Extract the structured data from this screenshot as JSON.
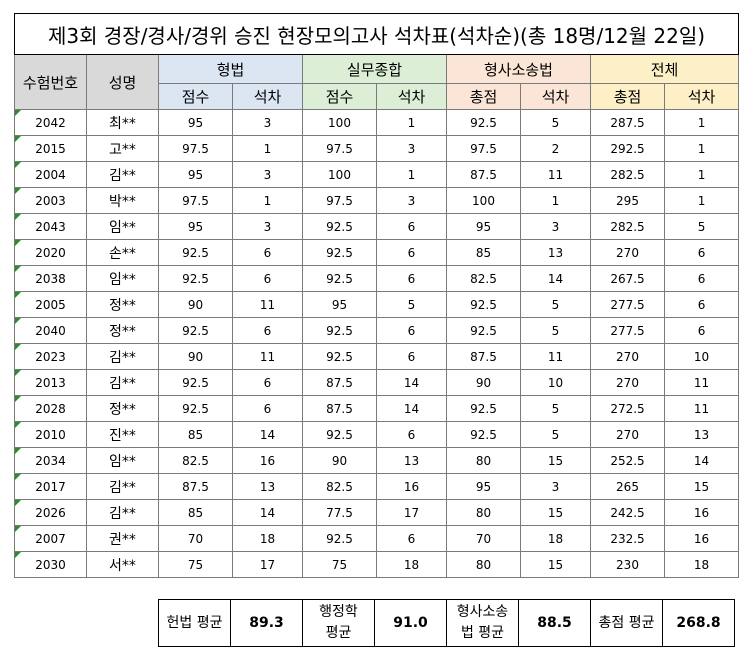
{
  "title": "제3회 경장/경사/경위 승진 현장모의고사 석차표(석차순)(총 18명/12월 22일)",
  "headers": {
    "exam_no": "수험번호",
    "name": "성명",
    "groups": [
      "형법",
      "실무종합",
      "형사소송법",
      "전체"
    ],
    "sub": [
      "점수",
      "석차",
      "점수",
      "석차",
      "총점",
      "석차",
      "총점",
      "석차"
    ]
  },
  "rows": [
    [
      "2042",
      "최**",
      "95",
      "3",
      "100",
      "1",
      "92.5",
      "5",
      "287.5",
      "1"
    ],
    [
      "2015",
      "고**",
      "97.5",
      "1",
      "97.5",
      "3",
      "97.5",
      "2",
      "292.5",
      "1"
    ],
    [
      "2004",
      "김**",
      "95",
      "3",
      "100",
      "1",
      "87.5",
      "11",
      "282.5",
      "1"
    ],
    [
      "2003",
      "박**",
      "97.5",
      "1",
      "97.5",
      "3",
      "100",
      "1",
      "295",
      "1"
    ],
    [
      "2043",
      "임**",
      "95",
      "3",
      "92.5",
      "6",
      "95",
      "3",
      "282.5",
      "5"
    ],
    [
      "2020",
      "손**",
      "92.5",
      "6",
      "92.5",
      "6",
      "85",
      "13",
      "270",
      "6"
    ],
    [
      "2038",
      "임**",
      "92.5",
      "6",
      "92.5",
      "6",
      "82.5",
      "14",
      "267.5",
      "6"
    ],
    [
      "2005",
      "정**",
      "90",
      "11",
      "95",
      "5",
      "92.5",
      "5",
      "277.5",
      "6"
    ],
    [
      "2040",
      "정**",
      "92.5",
      "6",
      "92.5",
      "6",
      "92.5",
      "5",
      "277.5",
      "6"
    ],
    [
      "2023",
      "김**",
      "90",
      "11",
      "92.5",
      "6",
      "87.5",
      "11",
      "270",
      "10"
    ],
    [
      "2013",
      "김**",
      "92.5",
      "6",
      "87.5",
      "14",
      "90",
      "10",
      "270",
      "11"
    ],
    [
      "2028",
      "정**",
      "92.5",
      "6",
      "87.5",
      "14",
      "92.5",
      "5",
      "272.5",
      "11"
    ],
    [
      "2010",
      "진**",
      "85",
      "14",
      "92.5",
      "6",
      "92.5",
      "5",
      "270",
      "13"
    ],
    [
      "2034",
      "임**",
      "82.5",
      "16",
      "90",
      "13",
      "80",
      "15",
      "252.5",
      "14"
    ],
    [
      "2017",
      "김**",
      "87.5",
      "13",
      "82.5",
      "16",
      "95",
      "3",
      "265",
      "15"
    ],
    [
      "2026",
      "김**",
      "85",
      "14",
      "77.5",
      "17",
      "80",
      "15",
      "242.5",
      "16"
    ],
    [
      "2007",
      "권**",
      "70",
      "18",
      "92.5",
      "6",
      "70",
      "18",
      "232.5",
      "16"
    ],
    [
      "2030",
      "서**",
      "75",
      "17",
      "75",
      "18",
      "80",
      "15",
      "230",
      "18"
    ]
  ],
  "summary": [
    {
      "label_lines": [
        "헌법 평균"
      ],
      "value": "89.3"
    },
    {
      "label_lines": [
        "행정학",
        "평균"
      ],
      "value": "91.0"
    },
    {
      "label_lines": [
        "형사소송",
        "법 평균"
      ],
      "value": "88.5"
    },
    {
      "label_lines": [
        "총점 평균"
      ],
      "value": "268.8"
    }
  ]
}
